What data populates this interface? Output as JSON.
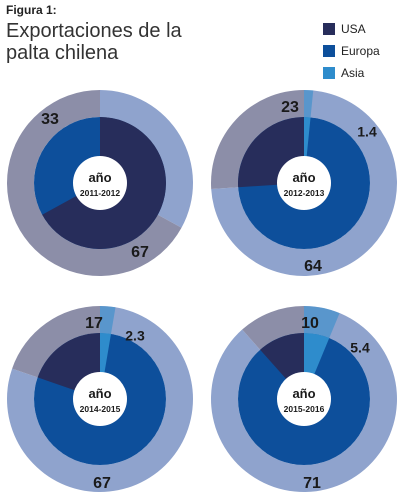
{
  "figure": {
    "label": "Figura 1:",
    "title_line1": "Exportaciones de la",
    "title_line2": "palta chilena"
  },
  "legend": [
    {
      "name": "USA",
      "color": "#272d5b"
    },
    {
      "name": "Europa",
      "color": "#0d4f9b"
    },
    {
      "name": "Asia",
      "color": "#2e8ccc"
    }
  ],
  "colors": {
    "outer_usa": "#8c8ea8",
    "outer_other": "#8fa3cd"
  },
  "chart_data": [
    {
      "type": "pie",
      "center_label": "año",
      "period": "2011-2012",
      "series": [
        {
          "name": "USA",
          "value": 67
        },
        {
          "name": "Europa",
          "value": 33
        },
        {
          "name": "Asia",
          "value": 0
        }
      ],
      "labels": [
        {
          "text": "33",
          "series": "Europa"
        },
        {
          "text": "67",
          "series": "USA"
        }
      ]
    },
    {
      "type": "pie",
      "center_label": "año",
      "period": "2012-2013",
      "series": [
        {
          "name": "USA",
          "value": 23
        },
        {
          "name": "Europa",
          "value": 64
        },
        {
          "name": "Asia",
          "value": 1.4
        }
      ],
      "labels": [
        {
          "text": "23",
          "series": "USA"
        },
        {
          "text": "1.4",
          "series": "Asia"
        },
        {
          "text": "64",
          "series": "Europa"
        }
      ]
    },
    {
      "type": "pie",
      "center_label": "año",
      "period": "2014-2015",
      "series": [
        {
          "name": "USA",
          "value": 17
        },
        {
          "name": "Europa",
          "value": 67
        },
        {
          "name": "Asia",
          "value": 2.3
        }
      ],
      "labels": [
        {
          "text": "17",
          "series": "USA"
        },
        {
          "text": "2.3",
          "series": "Asia"
        },
        {
          "text": "67",
          "series": "Europa"
        }
      ]
    },
    {
      "type": "pie",
      "center_label": "año",
      "period": "2015-2016",
      "series": [
        {
          "name": "USA",
          "value": 10
        },
        {
          "name": "Europa",
          "value": 71
        },
        {
          "name": "Asia",
          "value": 5.4
        }
      ],
      "labels": [
        {
          "text": "10",
          "series": "USA"
        },
        {
          "text": "5.4",
          "series": "Asia"
        },
        {
          "text": "71",
          "series": "Europa"
        }
      ]
    }
  ]
}
